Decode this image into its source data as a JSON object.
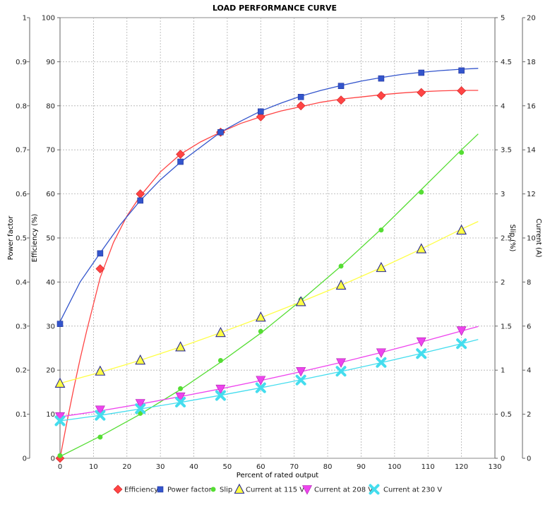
{
  "chart_data": {
    "type": "line",
    "title": "LOAD PERFORMANCE CURVE",
    "xlabel": "Percent of rated output",
    "xlim": [
      0,
      130
    ],
    "x_ticks": [
      "0",
      "10",
      "20",
      "30",
      "40",
      "50",
      "60",
      "70",
      "80",
      "90",
      "100",
      "110",
      "120",
      "130"
    ],
    "grid": true,
    "legend_position": "bottom",
    "axes": {
      "power_factor": {
        "label": "Power factor",
        "range": [
          0,
          1
        ],
        "ticks": [
          "0",
          "0.1",
          "0.2",
          "0.3",
          "0.4",
          "0.5",
          "0.6",
          "0.7",
          "0.8",
          "0.9",
          "1"
        ]
      },
      "efficiency": {
        "label": "Efficiency (%)",
        "range": [
          0,
          100
        ],
        "ticks": [
          "0",
          "10",
          "20",
          "30",
          "40",
          "50",
          "60",
          "70",
          "80",
          "90",
          "100"
        ]
      },
      "slip": {
        "label": "Slip (%)",
        "range": [
          0,
          5
        ],
        "ticks": [
          "0",
          "0.5",
          "1",
          "1.5",
          "2",
          "2.5",
          "3",
          "3.5",
          "4",
          "4.5",
          "5"
        ]
      },
      "current": {
        "label": "Current (A)",
        "range": [
          0,
          20
        ],
        "ticks": [
          "0",
          "2",
          "4",
          "6",
          "8",
          "10",
          "12",
          "14",
          "16",
          "18",
          "20"
        ]
      }
    },
    "series": [
      {
        "name": "Efficiency",
        "axis": "efficiency",
        "color": "#ff4444",
        "marker": "diamond",
        "x": [
          0,
          12,
          24,
          36,
          48,
          60,
          72,
          84,
          96,
          108,
          120
        ],
        "values": [
          0,
          43,
          60,
          69,
          74,
          77.5,
          80,
          81.3,
          82.3,
          83,
          83.4
        ],
        "curve": [
          [
            0,
            0
          ],
          [
            2,
            8
          ],
          [
            4,
            15.5
          ],
          [
            6,
            22.5
          ],
          [
            8,
            29
          ],
          [
            10,
            35
          ],
          [
            12,
            41
          ],
          [
            16,
            49
          ],
          [
            20,
            55
          ],
          [
            24,
            59.5
          ],
          [
            30,
            65
          ],
          [
            36,
            69
          ],
          [
            42,
            71.8
          ],
          [
            48,
            74
          ],
          [
            54,
            76
          ],
          [
            60,
            77.5
          ],
          [
            66,
            78.8
          ],
          [
            72,
            79.8
          ],
          [
            78,
            80.8
          ],
          [
            84,
            81.5
          ],
          [
            90,
            82
          ],
          [
            96,
            82.5
          ],
          [
            102,
            82.9
          ],
          [
            108,
            83.2
          ],
          [
            114,
            83.4
          ],
          [
            120,
            83.5
          ],
          [
            125,
            83.5
          ]
        ]
      },
      {
        "name": "Power factor",
        "axis": "power_factor",
        "color": "#3355cc",
        "marker": "square",
        "x": [
          0,
          12,
          24,
          36,
          48,
          60,
          72,
          84,
          96,
          108,
          120
        ],
        "values": [
          0.305,
          0.465,
          0.585,
          0.673,
          0.74,
          0.787,
          0.82,
          0.845,
          0.862,
          0.875,
          0.88
        ],
        "curve": [
          [
            0,
            0.31
          ],
          [
            6,
            0.4
          ],
          [
            12,
            0.466
          ],
          [
            18,
            0.53
          ],
          [
            24,
            0.585
          ],
          [
            30,
            0.632
          ],
          [
            36,
            0.672
          ],
          [
            42,
            0.706
          ],
          [
            48,
            0.74
          ],
          [
            54,
            0.765
          ],
          [
            60,
            0.788
          ],
          [
            66,
            0.806
          ],
          [
            72,
            0.822
          ],
          [
            78,
            0.835
          ],
          [
            84,
            0.846
          ],
          [
            90,
            0.856
          ],
          [
            96,
            0.864
          ],
          [
            102,
            0.871
          ],
          [
            108,
            0.876
          ],
          [
            114,
            0.88
          ],
          [
            120,
            0.883
          ],
          [
            125,
            0.885
          ]
        ]
      },
      {
        "name": "Slip",
        "axis": "slip",
        "color": "#55dd33",
        "marker": "circle",
        "x": [
          0,
          12,
          24,
          36,
          48,
          60,
          72,
          84,
          96,
          108,
          120
        ],
        "values": [
          0.03,
          0.24,
          0.51,
          0.79,
          1.11,
          1.44,
          1.8,
          2.18,
          2.59,
          3.02,
          3.47
        ],
        "curve": [
          [
            0,
            0.02
          ],
          [
            12,
            0.25
          ],
          [
            24,
            0.5
          ],
          [
            36,
            0.78
          ],
          [
            48,
            1.09
          ],
          [
            60,
            1.42
          ],
          [
            72,
            1.79
          ],
          [
            84,
            2.18
          ],
          [
            96,
            2.6
          ],
          [
            108,
            3.05
          ],
          [
            120,
            3.5
          ],
          [
            125,
            3.68
          ]
        ]
      },
      {
        "name": "Current at 115 V",
        "axis": "current",
        "color": "#ffff44",
        "marker": "triangle-up",
        "x": [
          0,
          12,
          24,
          36,
          48,
          60,
          72,
          84,
          96,
          108,
          120
        ],
        "values": [
          3.4,
          3.95,
          4.45,
          5.05,
          5.7,
          6.4,
          7.1,
          7.85,
          8.65,
          9.5,
          10.35
        ],
        "curve": [
          [
            0,
            3.4
          ],
          [
            12,
            3.9
          ],
          [
            24,
            4.45
          ],
          [
            36,
            5.05
          ],
          [
            48,
            5.7
          ],
          [
            60,
            6.38
          ],
          [
            72,
            7.1
          ],
          [
            84,
            7.85
          ],
          [
            96,
            8.65
          ],
          [
            108,
            9.5
          ],
          [
            120,
            10.4
          ],
          [
            125,
            10.75
          ]
        ]
      },
      {
        "name": "Current at 208 V",
        "axis": "current",
        "color": "#ee44ee",
        "marker": "triangle-down",
        "x": [
          0,
          12,
          24,
          36,
          48,
          60,
          72,
          84,
          96,
          108,
          120
        ],
        "values": [
          1.9,
          2.2,
          2.5,
          2.8,
          3.15,
          3.55,
          3.95,
          4.35,
          4.8,
          5.3,
          5.8
        ],
        "curve": [
          [
            0,
            1.88
          ],
          [
            12,
            2.15
          ],
          [
            24,
            2.46
          ],
          [
            36,
            2.8
          ],
          [
            48,
            3.15
          ],
          [
            60,
            3.53
          ],
          [
            72,
            3.93
          ],
          [
            84,
            4.35
          ],
          [
            96,
            4.8
          ],
          [
            108,
            5.28
          ],
          [
            120,
            5.78
          ],
          [
            125,
            5.98
          ]
        ]
      },
      {
        "name": "Current at 230 V",
        "axis": "current",
        "color": "#44ddee",
        "marker": "cross",
        "x": [
          0,
          12,
          24,
          36,
          48,
          60,
          72,
          84,
          96,
          108,
          120
        ],
        "values": [
          1.7,
          1.95,
          2.25,
          2.55,
          2.85,
          3.2,
          3.55,
          3.95,
          4.35,
          4.75,
          5.2
        ],
        "curve": [
          [
            0,
            1.7
          ],
          [
            12,
            1.95
          ],
          [
            24,
            2.24
          ],
          [
            36,
            2.54
          ],
          [
            48,
            2.86
          ],
          [
            60,
            3.2
          ],
          [
            72,
            3.56
          ],
          [
            84,
            3.94
          ],
          [
            96,
            4.34
          ],
          [
            108,
            4.76
          ],
          [
            120,
            5.2
          ],
          [
            125,
            5.39
          ]
        ]
      }
    ]
  }
}
